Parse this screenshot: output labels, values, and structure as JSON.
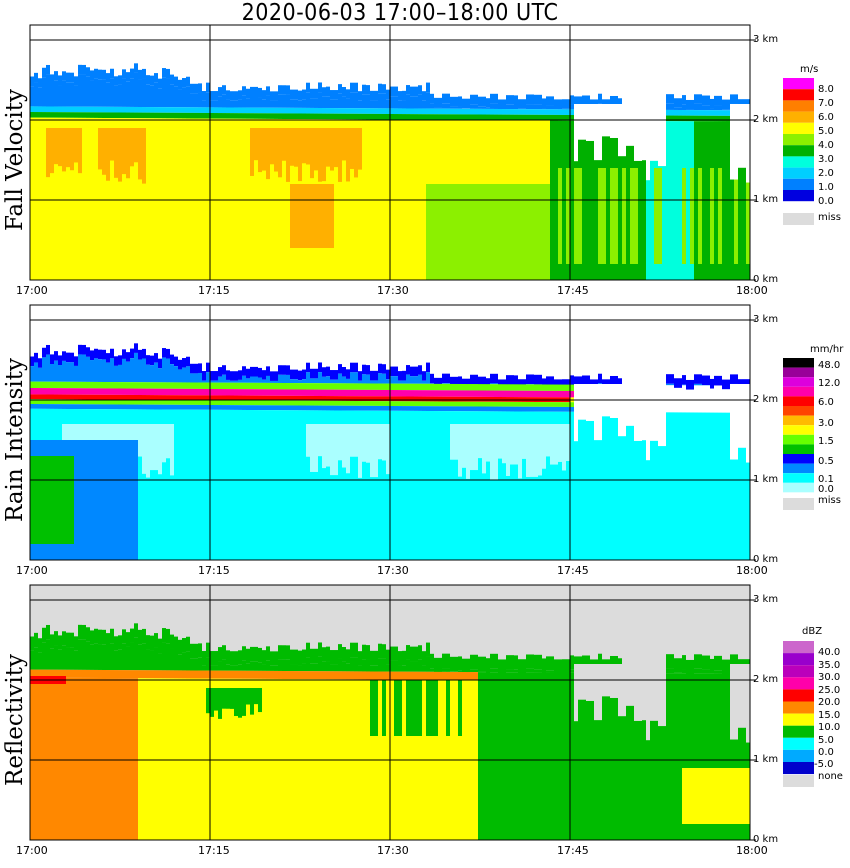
{
  "title": "2020-06-03   17:00–18:00 UTC",
  "x_ticks": [
    "17:00",
    "17:15",
    "17:30",
    "17:45",
    "18:00"
  ],
  "km_ticks": [
    "3 km",
    "2 km",
    "1 km",
    "0 km"
  ],
  "panels": [
    {
      "label": "Fall Velocity",
      "unit": "m/s",
      "miss_color": "#dcdcdc",
      "colors": [
        "#0000e0",
        "#0080ff",
        "#00cfff",
        "#00ffdd",
        "#00b000",
        "#8cf000",
        "#ffff00",
        "#ffb000",
        "#ff7f00",
        "#ff0000",
        "#ff00ff"
      ],
      "levels": [
        "8.0",
        "7.0",
        "6.0",
        "5.0",
        "4.0",
        "3.0",
        "2.0",
        "1.0",
        "0.0",
        "miss"
      ]
    },
    {
      "label": "Rain Intensity",
      "unit": "mm/hr",
      "miss_color": "#dcdcdc",
      "colors": [
        "#ffffff",
        "#aaffff",
        "#00ffff",
        "#0088ff",
        "#0000ff",
        "#00c000",
        "#66ff00",
        "#ffff00",
        "#ffbb00",
        "#ff4400",
        "#ff0000",
        "#ff00aa",
        "#dd00dd",
        "#990099",
        "#000000"
      ],
      "levels": [
        "48.0",
        "12.0",
        "6.0",
        "3.0",
        "1.5",
        "0.5",
        "0.1",
        "0.0",
        "miss"
      ]
    },
    {
      "label": "Reflectivity",
      "unit": "dBZ",
      "miss_color": "#dcdcdc",
      "colors": [
        "#0000cc",
        "#00aaff",
        "#00ffff",
        "#00bb00",
        "#ffff00",
        "#ff8800",
        "#ff0000",
        "#ff00aa",
        "#bb00bb",
        "#9900cc",
        "#cc66cc"
      ],
      "levels": [
        "40.0",
        "35.0",
        "30.0",
        "25.0",
        "20.0",
        "15.0",
        "10.0",
        "5.0",
        "0.0",
        "-5.0",
        "none"
      ]
    }
  ],
  "chart_data": [
    {
      "type": "heatmap",
      "title": "Fall Velocity",
      "colorbar_label": "m/s",
      "x_range": [
        "17:00",
        "18:00"
      ],
      "y_range_km": [
        0,
        3
      ],
      "colorbar_ticks": [
        0.0,
        1.0,
        2.0,
        3.0,
        4.0,
        5.0,
        6.0,
        7.0,
        8.0
      ],
      "notes": "Echo top ~2.5 km; 5-7 m/s below melting layer (~2 km) in first half; 2-4 m/s after 17:45"
    },
    {
      "type": "heatmap",
      "title": "Rain Intensity",
      "colorbar_label": "mm/hr",
      "x_range": [
        "17:00",
        "18:00"
      ],
      "y_range_km": [
        0,
        3
      ],
      "colorbar_ticks": [
        0.0,
        0.1,
        0.5,
        1.5,
        3.0,
        6.0,
        12.0,
        48.0
      ],
      "notes": "Bright band 6-12 mm/hr near 2.1 km until ~17:50; 0.1-1.5 mm/hr below"
    },
    {
      "type": "heatmap",
      "title": "Reflectivity",
      "colorbar_label": "dBZ",
      "x_range": [
        "17:00",
        "18:00"
      ],
      "y_range_km": [
        0,
        3
      ],
      "colorbar_ticks": [
        -5.0,
        0.0,
        5.0,
        10.0,
        15.0,
        20.0,
        25.0,
        30.0,
        35.0,
        40.0
      ],
      "notes": "Bright band 25-30 dBZ near 2.1 km; 20-25 dBZ rain below; 10-15 dBZ after 17:45"
    }
  ]
}
